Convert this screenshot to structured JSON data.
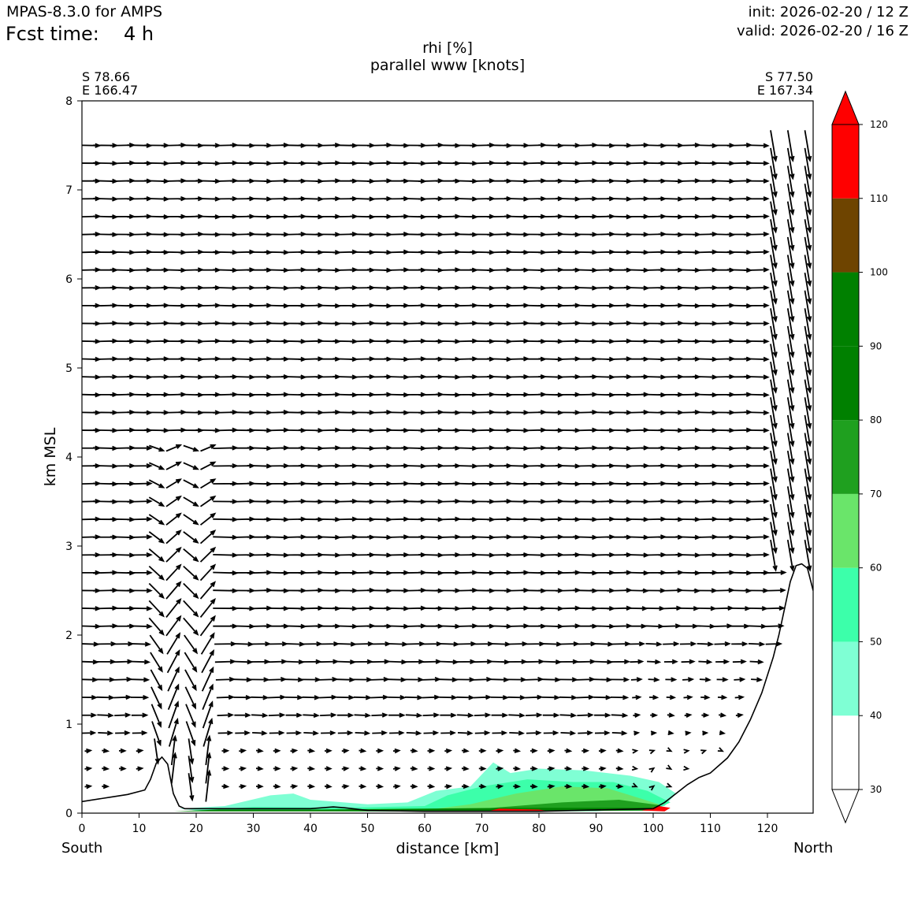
{
  "header": {
    "model": "MPAS-8.3.0 for AMPS",
    "fcst_label": "Fcst time:",
    "fcst_value": "4 h",
    "init": "init: 2026-02-20 / 12 Z",
    "valid": "valid: 2026-02-20 / 16 Z"
  },
  "endpoints": {
    "left_lat": "S 78.66",
    "left_lon": "E 166.47",
    "right_lat": "S 77.50",
    "right_lon": "E 167.34",
    "left_dir": "South",
    "right_dir": "North"
  },
  "chart_data": {
    "type": "cross-section",
    "title": "rhi [%]",
    "subtitle": "parallel www [knots]",
    "xlabel": "distance [km]",
    "ylabel": "km MSL",
    "xlim": [
      0,
      128
    ],
    "ylim": [
      0,
      8
    ],
    "xticks": [
      0,
      10,
      20,
      30,
      40,
      50,
      60,
      70,
      80,
      90,
      100,
      110,
      120
    ],
    "yticks": [
      0,
      1,
      2,
      3,
      4,
      5,
      6,
      7,
      8
    ],
    "colorbar": {
      "levels": [
        30,
        40,
        50,
        60,
        70,
        80,
        90,
        100,
        110,
        120
      ],
      "colors": [
        "#ffffff",
        "#7fffd4",
        "#3cffaa",
        "#6ae56a",
        "#1fa01f",
        "#008000",
        "#008000",
        "#6e4400",
        "#ff0000"
      ],
      "extend": "both"
    },
    "terrain": {
      "distance_km": [
        0,
        5,
        8,
        11,
        12,
        13,
        14,
        15,
        16,
        17,
        18,
        20,
        30,
        40,
        44,
        46,
        50,
        60,
        80,
        100,
        102,
        104,
        106,
        108,
        110,
        113,
        115,
        117,
        119,
        121,
        122,
        123,
        124,
        125,
        126,
        127,
        128
      ],
      "height_km": [
        0.13,
        0.18,
        0.21,
        0.26,
        0.38,
        0.56,
        0.63,
        0.55,
        0.22,
        0.08,
        0.05,
        0.05,
        0.05,
        0.05,
        0.07,
        0.06,
        0.03,
        0.02,
        0.02,
        0.05,
        0.12,
        0.22,
        0.32,
        0.4,
        0.45,
        0.62,
        0.8,
        1.05,
        1.35,
        1.75,
        2.0,
        2.3,
        2.6,
        2.78,
        2.8,
        2.75,
        2.5
      ]
    },
    "rhi_regions": [
      {
        "range": "40-50",
        "points": [
          [
            17,
            0.05
          ],
          [
            25,
            0.08
          ],
          [
            33,
            0.2
          ],
          [
            37,
            0.22
          ],
          [
            40,
            0.15
          ],
          [
            50,
            0.1
          ],
          [
            57,
            0.12
          ],
          [
            62,
            0.25
          ],
          [
            68,
            0.3
          ],
          [
            72,
            0.57
          ],
          [
            75,
            0.45
          ],
          [
            80,
            0.5
          ],
          [
            88,
            0.48
          ],
          [
            96,
            0.42
          ],
          [
            101,
            0.35
          ],
          [
            104,
            0.22
          ],
          [
            102,
            0.08
          ],
          [
            90,
            0.02
          ],
          [
            60,
            0.02
          ],
          [
            40,
            0.03
          ],
          [
            20,
            0.03
          ]
        ]
      },
      {
        "range": "50-60",
        "points": [
          [
            20,
            0.03
          ],
          [
            30,
            0.07
          ],
          [
            45,
            0.06
          ],
          [
            60,
            0.08
          ],
          [
            64,
            0.2
          ],
          [
            70,
            0.3
          ],
          [
            78,
            0.38
          ],
          [
            86,
            0.35
          ],
          [
            93,
            0.35
          ],
          [
            99,
            0.25
          ],
          [
            103,
            0.12
          ],
          [
            100,
            0.03
          ],
          [
            80,
            0.02
          ],
          [
            50,
            0.02
          ]
        ]
      },
      {
        "range": "60-70",
        "points": [
          [
            62,
            0.05
          ],
          [
            68,
            0.1
          ],
          [
            76,
            0.22
          ],
          [
            84,
            0.3
          ],
          [
            92,
            0.28
          ],
          [
            96,
            0.2
          ],
          [
            101,
            0.1
          ],
          [
            99,
            0.03
          ],
          [
            80,
            0.02
          ]
        ]
      },
      {
        "range": "70-80",
        "points": [
          [
            64,
            0.03
          ],
          [
            72,
            0.06
          ],
          [
            84,
            0.12
          ],
          [
            94,
            0.15
          ],
          [
            101,
            0.09
          ],
          [
            102,
            0.04
          ],
          [
            80,
            0.02
          ]
        ]
      },
      {
        "range": "80-100",
        "points": [
          [
            16,
            0.02
          ],
          [
            24,
            0.04
          ],
          [
            40,
            0.04
          ],
          [
            60,
            0.05
          ],
          [
            76,
            0.06
          ],
          [
            92,
            0.06
          ],
          [
            101,
            0.06
          ],
          [
            102,
            0.03
          ],
          [
            60,
            0.02
          ],
          [
            30,
            0.02
          ]
        ]
      },
      {
        "range": "110-120",
        "points": [
          [
            71,
            0.02
          ],
          [
            73,
            0.05
          ],
          [
            80,
            0.04
          ],
          [
            82,
            0.02
          ]
        ]
      },
      {
        "range": "110-120",
        "points": [
          [
            98,
            0.03
          ],
          [
            101,
            0.08
          ],
          [
            103,
            0.06
          ],
          [
            102,
            0.02
          ]
        ]
      }
    ]
  }
}
